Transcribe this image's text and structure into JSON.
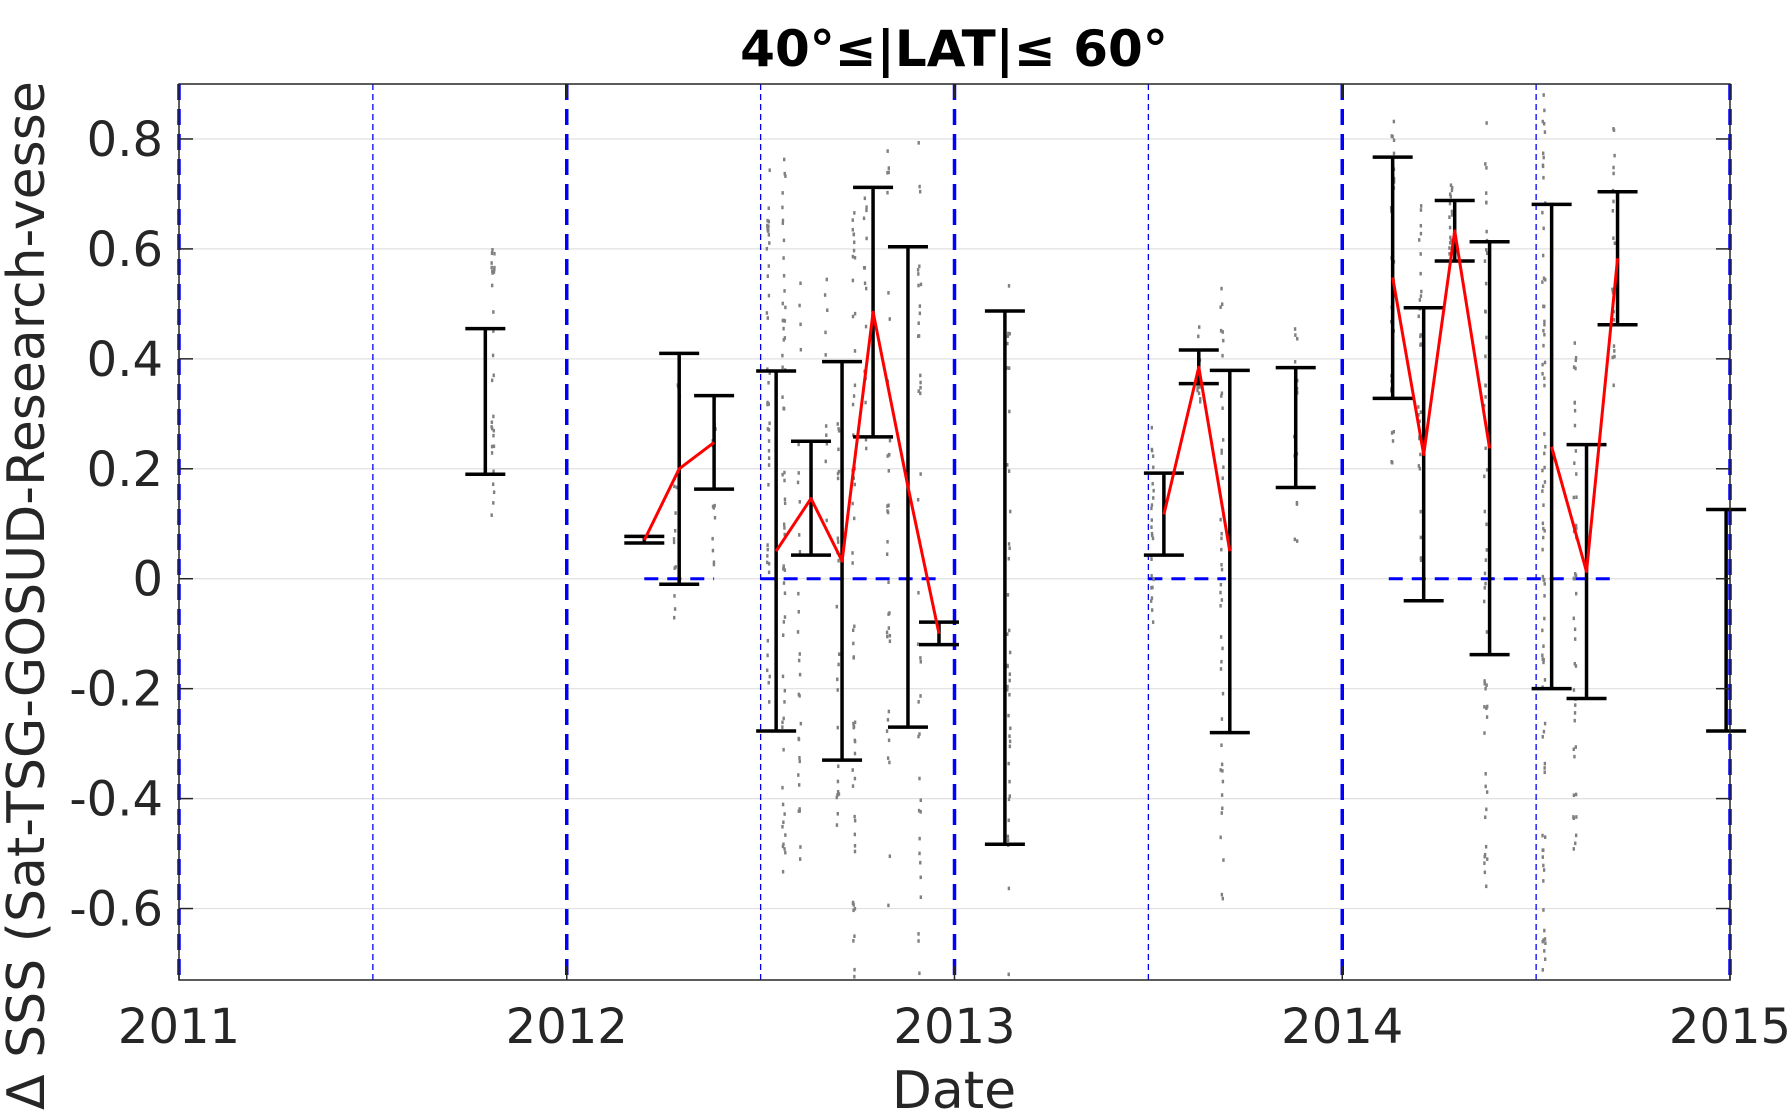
{
  "chart_data": {
    "type": "scatter",
    "title": "40°≤|LAT|≤ 60°",
    "xlabel": "Date",
    "ylabel": "Δ SSS (Sat-TSG-GOSUD-Research-vesse",
    "xlim": [
      2011,
      2015
    ],
    "ylim": [
      -0.73,
      0.9
    ],
    "xticks": [
      2011,
      2012,
      2013,
      2014,
      2015
    ],
    "xtick_labels": [
      "2011",
      "2012",
      "2013",
      "2014",
      "2015"
    ],
    "yticks": [
      0.8,
      0.6,
      0.4,
      0.2,
      0,
      -0.2,
      -0.4,
      -0.6
    ],
    "ytick_labels": [
      "0.8",
      "0.6",
      "0.4",
      "0.2",
      "0",
      "-0.2",
      "-0.4",
      "-0.6"
    ],
    "grid": "horizontal",
    "colors": {
      "errorbar": "#000000",
      "mean_line": "#ff0000",
      "reference": "#0000ff",
      "scatter": "#808080",
      "grid": "#e0e0e0"
    },
    "year_boundaries": [
      2011,
      2012,
      2013,
      2014,
      2015
    ],
    "half_year_lines": [
      2011.5,
      2012.5,
      2013.5,
      2014.5
    ],
    "zero_lines": [
      [
        2012.2,
        2012.38
      ],
      [
        2012.5,
        2012.97
      ],
      [
        2013.5,
        2013.7
      ],
      [
        2014.12,
        2014.71
      ]
    ],
    "error_bars": [
      {
        "x": 2011.79,
        "low": 0.19,
        "high": 0.455
      },
      {
        "x": 2012.2,
        "low": 0.065,
        "high": 0.077
      },
      {
        "x": 2012.29,
        "low": -0.01,
        "high": 0.41
      },
      {
        "x": 2012.38,
        "low": 0.163,
        "high": 0.333
      },
      {
        "x": 2012.54,
        "low": -0.277,
        "high": 0.378
      },
      {
        "x": 2012.63,
        "low": 0.043,
        "high": 0.25
      },
      {
        "x": 2012.71,
        "low": -0.33,
        "high": 0.395
      },
      {
        "x": 2012.79,
        "low": 0.258,
        "high": 0.712
      },
      {
        "x": 2012.88,
        "low": -0.27,
        "high": 0.604
      },
      {
        "x": 2012.96,
        "low": -0.12,
        "high": -0.079
      },
      {
        "x": 2013.13,
        "low": -0.483,
        "high": 0.487
      },
      {
        "x": 2013.54,
        "low": 0.043,
        "high": 0.192
      },
      {
        "x": 2013.63,
        "low": 0.355,
        "high": 0.416
      },
      {
        "x": 2013.71,
        "low": -0.28,
        "high": 0.379
      },
      {
        "x": 2013.88,
        "low": 0.166,
        "high": 0.384
      },
      {
        "x": 2014.13,
        "low": 0.328,
        "high": 0.767
      },
      {
        "x": 2014.21,
        "low": -0.04,
        "high": 0.493
      },
      {
        "x": 2014.29,
        "low": 0.578,
        "high": 0.688
      },
      {
        "x": 2014.38,
        "low": -0.138,
        "high": 0.613
      },
      {
        "x": 2014.54,
        "low": -0.2,
        "high": 0.681
      },
      {
        "x": 2014.63,
        "low": -0.218,
        "high": 0.244
      },
      {
        "x": 2014.71,
        "low": 0.462,
        "high": 0.704
      },
      {
        "x": 2014.99,
        "low": -0.277,
        "high": 0.126
      }
    ],
    "mean_segments": [
      [
        [
          2012.2,
          0.07
        ],
        [
          2012.29,
          0.2
        ],
        [
          2012.38,
          0.248
        ]
      ],
      [
        [
          2012.54,
          0.05
        ],
        [
          2012.63,
          0.146
        ],
        [
          2012.71,
          0.032
        ],
        [
          2012.79,
          0.485
        ],
        [
          2012.88,
          0.167
        ],
        [
          2012.96,
          -0.1
        ]
      ],
      [
        [
          2013.54,
          0.117
        ],
        [
          2013.63,
          0.385
        ],
        [
          2013.71,
          0.05
        ]
      ],
      [
        [
          2014.13,
          0.548
        ],
        [
          2014.21,
          0.226
        ],
        [
          2014.29,
          0.633
        ],
        [
          2014.38,
          0.237
        ]
      ],
      [
        [
          2014.54,
          0.24
        ],
        [
          2014.63,
          0.013
        ],
        [
          2014.71,
          0.583
        ]
      ]
    ],
    "scatter_clusters": [
      {
        "x": 2011.81,
        "low": 0.11,
        "high": 0.6,
        "n": 30
      },
      {
        "x": 2012.28,
        "low": -0.1,
        "high": 0.2,
        "n": 12
      },
      {
        "x": 2012.29,
        "low": 0.28,
        "high": 0.38,
        "n": 8
      },
      {
        "x": 2012.38,
        "low": 0.02,
        "high": 0.35,
        "n": 15
      },
      {
        "x": 2012.52,
        "low": -0.25,
        "high": 0.75,
        "n": 45
      },
      {
        "x": 2012.56,
        "low": -0.54,
        "high": 0.82,
        "n": 60
      },
      {
        "x": 2012.6,
        "low": -0.55,
        "high": 0.55,
        "n": 30
      },
      {
        "x": 2012.67,
        "low": 0.1,
        "high": 0.55,
        "n": 10
      },
      {
        "x": 2012.7,
        "low": -0.45,
        "high": 0.3,
        "n": 25
      },
      {
        "x": 2012.74,
        "low": -0.73,
        "high": 0.7,
        "n": 55
      },
      {
        "x": 2012.77,
        "low": 0.2,
        "high": 0.7,
        "n": 15
      },
      {
        "x": 2012.83,
        "low": -0.6,
        "high": 0.8,
        "n": 35
      },
      {
        "x": 2012.91,
        "low": -0.73,
        "high": 0.84,
        "n": 40
      },
      {
        "x": 2013.14,
        "low": -0.73,
        "high": 0.57,
        "n": 40
      },
      {
        "x": 2013.51,
        "low": -0.08,
        "high": 0.28,
        "n": 25
      },
      {
        "x": 2013.63,
        "low": 0.3,
        "high": 0.46,
        "n": 15
      },
      {
        "x": 2013.69,
        "low": -0.62,
        "high": 0.57,
        "n": 45
      },
      {
        "x": 2013.88,
        "low": 0.06,
        "high": 0.46,
        "n": 20
      },
      {
        "x": 2014.13,
        "low": 0.2,
        "high": 0.84,
        "n": 35
      },
      {
        "x": 2014.2,
        "low": 0.02,
        "high": 0.75,
        "n": 30
      },
      {
        "x": 2014.28,
        "low": 0.55,
        "high": 0.72,
        "n": 15
      },
      {
        "x": 2014.37,
        "low": -0.6,
        "high": 0.83,
        "n": 55
      },
      {
        "x": 2014.52,
        "low": -0.73,
        "high": 0.88,
        "n": 80
      },
      {
        "x": 2014.6,
        "low": -0.5,
        "high": 0.45,
        "n": 45
      },
      {
        "x": 2014.7,
        "low": 0.35,
        "high": 0.85,
        "n": 20
      }
    ]
  }
}
